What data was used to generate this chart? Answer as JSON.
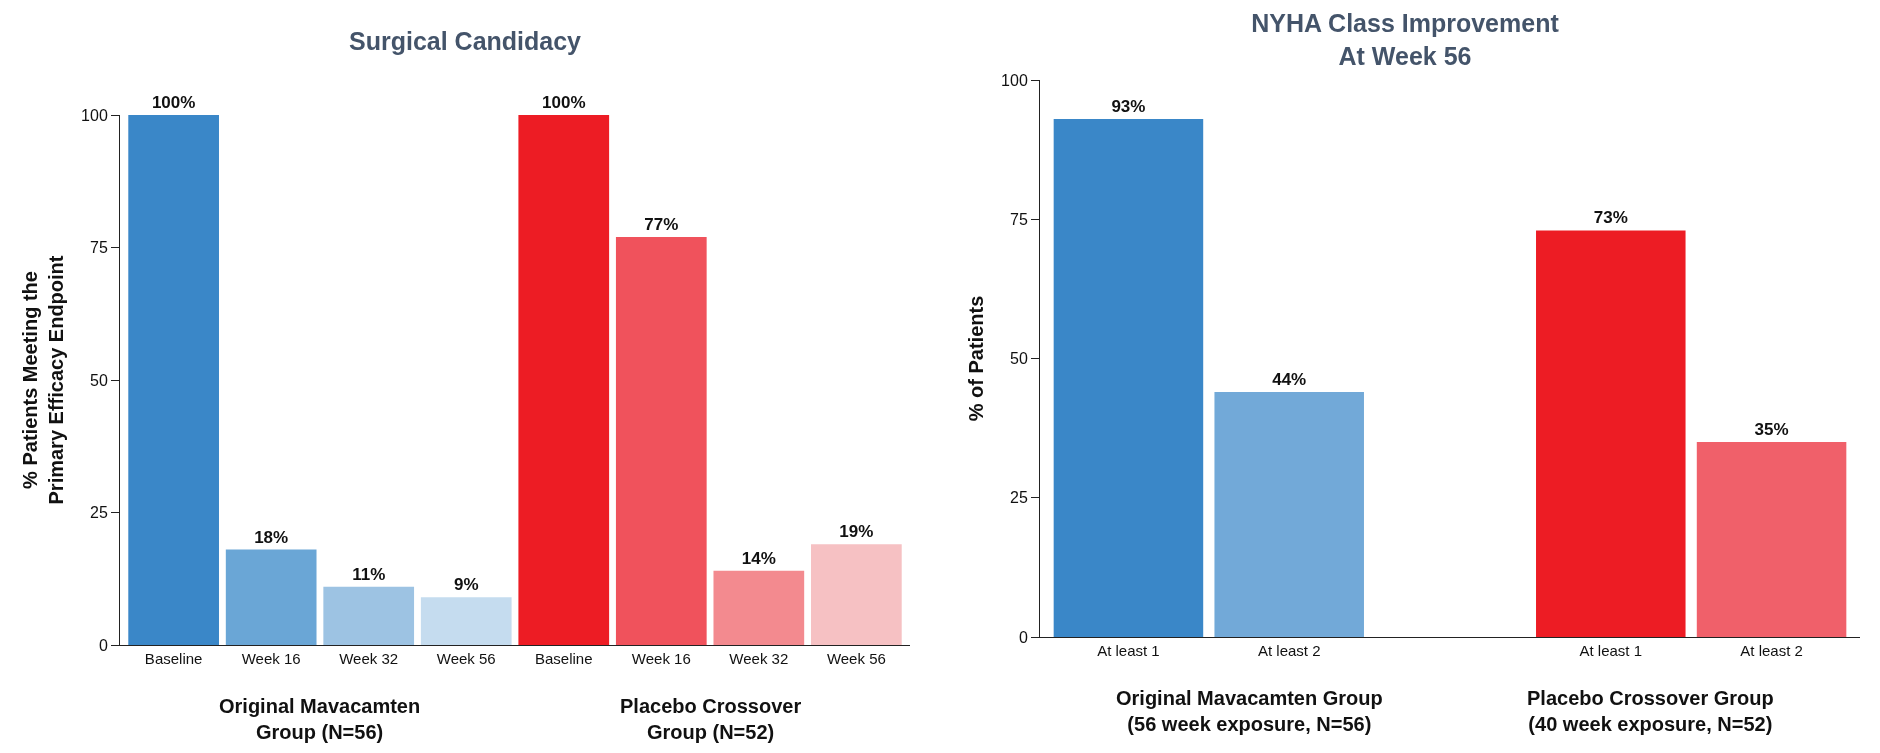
{
  "chart_data": [
    {
      "type": "bar",
      "title": "Surgical Candidacy",
      "ylabel": "% Patients Meeting the\nPrimary Efficacy Endpoint",
      "categories": [
        "Baseline",
        "Week 16",
        "Week 32",
        "Week 56",
        "Baseline",
        "Week 16",
        "Week 32",
        "Week 56"
      ],
      "values": [
        100,
        18,
        11,
        9,
        100,
        77,
        14,
        19
      ],
      "colors": [
        "#3a87c8",
        "#6aa6d6",
        "#9dc3e3",
        "#c5dcef",
        "#ed1c24",
        "#f0525c",
        "#f38a8f",
        "#f6c1c3"
      ],
      "value_labels": [
        "100%",
        "18%",
        "11%",
        "9%",
        "100%",
        "77%",
        "14%",
        "19%"
      ],
      "ylim": [
        0,
        100
      ],
      "yticks": [
        0,
        25,
        50,
        75,
        100
      ],
      "grid": false,
      "legend": false,
      "annotations": [
        "Original Mavacamten\nGroup (N=56)",
        "Placebo Crossover\nGroup (N=52)"
      ]
    },
    {
      "type": "bar",
      "title": "NYHA Class Improvement\nAt Week 56",
      "ylabel": "% of Patients",
      "categories": [
        "At least 1",
        "At least 2",
        null,
        "At least 1",
        "At least 2"
      ],
      "values": [
        93,
        44,
        null,
        73,
        35
      ],
      "colors": [
        "#3a87c8",
        "#72a9d8",
        "#ffffff",
        "#ed1c24",
        "#f0606a"
      ],
      "value_labels": [
        "93%",
        "44%",
        null,
        "73%",
        "35%"
      ],
      "ylim": [
        0,
        100
      ],
      "yticks": [
        0,
        25,
        50,
        75,
        100
      ],
      "grid": false,
      "legend": false,
      "annotations": [
        "Original Mavacamten Group\n(56 week exposure, N=56)",
        "Placebo Crossover Group\n(40 week exposure, N=52)"
      ]
    }
  ]
}
